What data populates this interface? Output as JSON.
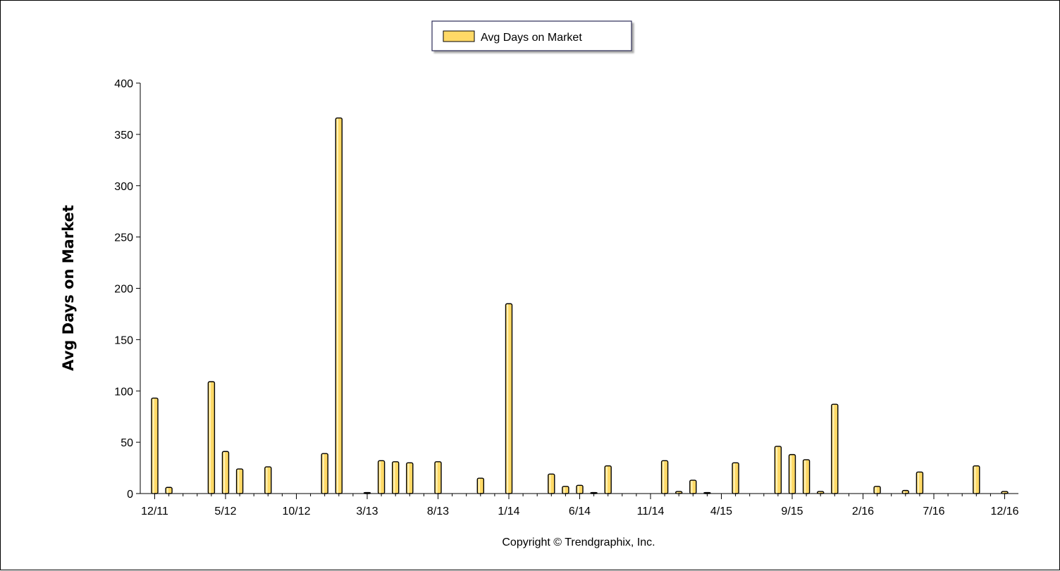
{
  "chart_data": {
    "type": "bar",
    "ylabel": "Avg Days on Market",
    "ylim": [
      0,
      400
    ],
    "yticks": [
      0,
      50,
      100,
      150,
      200,
      250,
      300,
      350,
      400
    ],
    "xtick_labels": [
      "12/11",
      "5/12",
      "10/12",
      "3/13",
      "8/13",
      "1/14",
      "6/14",
      "11/14",
      "4/15",
      "9/15",
      "2/16",
      "7/16",
      "12/16"
    ],
    "categories": [
      "12/11",
      "1/12",
      "2/12",
      "3/12",
      "4/12",
      "5/12",
      "6/12",
      "7/12",
      "8/12",
      "9/12",
      "10/12",
      "11/12",
      "12/12",
      "1/13",
      "2/13",
      "3/13",
      "4/13",
      "5/13",
      "6/13",
      "7/13",
      "8/13",
      "9/13",
      "10/13",
      "11/13",
      "12/13",
      "1/14",
      "2/14",
      "3/14",
      "4/14",
      "5/14",
      "6/14",
      "7/14",
      "8/14",
      "9/14",
      "10/14",
      "11/14",
      "12/14",
      "1/15",
      "2/15",
      "3/15",
      "4/15",
      "5/15",
      "6/15",
      "7/15",
      "8/15",
      "9/15",
      "10/15",
      "11/15",
      "12/15",
      "1/16",
      "2/16",
      "3/16",
      "4/16",
      "5/16",
      "6/16",
      "7/16",
      "8/16",
      "9/16",
      "10/16",
      "11/16",
      "12/16"
    ],
    "series": [
      {
        "name": "Avg Days on Market",
        "color": "#FFD966",
        "values": [
          93,
          6,
          0,
          0,
          109,
          41,
          24,
          0,
          26,
          0,
          0,
          0,
          39,
          366,
          0,
          1,
          32,
          31,
          30,
          0,
          31,
          0,
          0,
          15,
          0,
          185,
          0,
          0,
          19,
          7,
          8,
          1,
          27,
          0,
          0,
          0,
          32,
          2,
          13,
          1,
          0,
          30,
          0,
          0,
          46,
          38,
          33,
          2,
          87,
          0,
          0,
          7,
          0,
          3,
          21,
          0,
          0,
          0,
          27,
          0,
          2
        ]
      }
    ],
    "legend": {
      "position": "top-center",
      "label": "Avg Days on Market"
    },
    "grid": false
  },
  "copyright": "Copyright © Trendgraphix, Inc."
}
